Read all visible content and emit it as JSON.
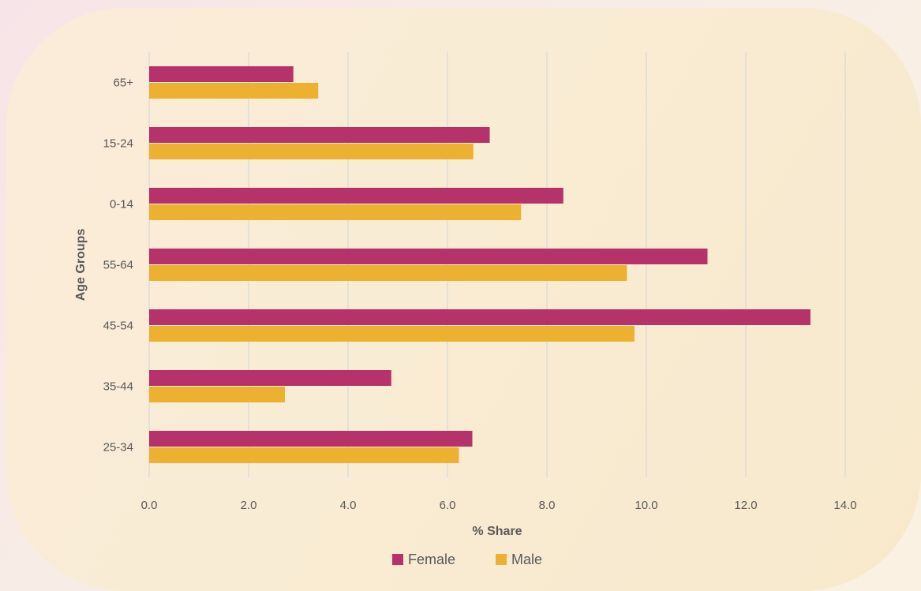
{
  "chart_data": {
    "type": "bar",
    "orientation": "horizontal",
    "categories": [
      "65+",
      "15-24",
      "0-14",
      "55-64",
      "45-54",
      "35-44",
      "25-34"
    ],
    "series": [
      {
        "name": "Female",
        "color": "#b5336a",
        "values": [
          2.9,
          6.85,
          8.33,
          11.23,
          13.3,
          4.87,
          6.5
        ]
      },
      {
        "name": "Male",
        "color": "#ecb130",
        "values": [
          3.4,
          6.52,
          7.48,
          9.61,
          9.76,
          2.73,
          6.23
        ]
      }
    ],
    "xlabel": "% Share",
    "ylabel": "Age Groups",
    "xlim": [
      0,
      14
    ],
    "x_ticks": [
      "0.0",
      "2.0",
      "4.0",
      "6.0",
      "8.0",
      "10.0",
      "12.0",
      "14.0"
    ],
    "grid": "vertical",
    "legend_position": "bottom"
  }
}
